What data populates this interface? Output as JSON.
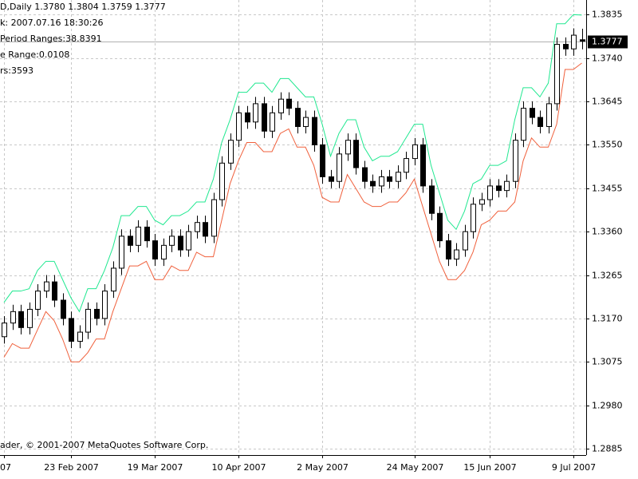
{
  "header": {
    "lines": [
      "D,Daily  1.3780 1.3804 1.3759 1.3777",
      "k: 2007.07.16 18:30:26",
      "Period Ranges:38.8391",
      "e Range:0.0108",
      "rs:3593"
    ]
  },
  "copyright": "ader, © 2001-2007 MetaQuotes Software Corp.",
  "chart_data": {
    "type": "candlestick",
    "categories": [
      "07",
      null,
      null,
      null,
      null,
      null,
      null,
      null,
      "23 Feb 2007",
      null,
      null,
      null,
      null,
      null,
      null,
      null,
      null,
      null,
      "19 Mar 2007",
      null,
      null,
      null,
      null,
      null,
      null,
      null,
      null,
      null,
      "10 Apr 2007",
      null,
      null,
      null,
      null,
      null,
      null,
      null,
      null,
      null,
      "2 May 2007",
      null,
      null,
      null,
      null,
      null,
      null,
      null,
      null,
      null,
      null,
      "24 May 2007",
      null,
      null,
      null,
      null,
      null,
      null,
      null,
      null,
      "15 Jun 2007",
      null,
      null,
      null,
      null,
      null,
      null,
      null,
      null,
      null,
      "9 Jul 2007",
      null
    ],
    "open": [
      1.313,
      1.316,
      1.3185,
      1.315,
      1.319,
      1.323,
      1.325,
      1.321,
      1.317,
      1.312,
      1.314,
      1.319,
      1.317,
      1.323,
      1.328,
      1.335,
      1.333,
      1.337,
      1.334,
      1.33,
      1.333,
      1.335,
      1.332,
      1.336,
      1.338,
      1.335,
      1.343,
      1.351,
      1.356,
      1.362,
      1.36,
      1.364,
      1.358,
      1.362,
      1.365,
      1.363,
      1.359,
      1.361,
      1.355,
      1.348,
      1.347,
      1.353,
      1.356,
      1.35,
      1.347,
      1.346,
      1.348,
      1.347,
      1.349,
      1.352,
      1.355,
      1.346,
      1.34,
      1.334,
      1.33,
      1.332,
      1.336,
      1.342,
      1.343,
      1.346,
      1.345,
      1.347,
      1.356,
      1.363,
      1.361,
      1.359,
      1.364,
      1.377,
      1.376,
      1.378
    ],
    "high": [
      1.3175,
      1.32,
      1.32,
      1.3205,
      1.3245,
      1.3265,
      1.3265,
      1.3225,
      1.3185,
      1.3155,
      1.3205,
      1.3205,
      1.3245,
      1.3295,
      1.3365,
      1.3365,
      1.3385,
      1.3385,
      1.3355,
      1.3345,
      1.3365,
      1.3365,
      1.3375,
      1.3395,
      1.3395,
      1.3445,
      1.3525,
      1.3575,
      1.3635,
      1.3635,
      1.3655,
      1.3655,
      1.3635,
      1.3665,
      1.3665,
      1.3645,
      1.3625,
      1.3625,
      1.3565,
      1.3495,
      1.3545,
      1.3575,
      1.3575,
      1.3515,
      1.3485,
      1.3495,
      1.3495,
      1.3505,
      1.3535,
      1.3565,
      1.3565,
      1.3475,
      1.3415,
      1.3355,
      1.3335,
      1.3375,
      1.3435,
      1.3445,
      1.3475,
      1.3475,
      1.3485,
      1.3575,
      1.3645,
      1.3645,
      1.3625,
      1.3655,
      1.3785,
      1.3785,
      1.3805,
      1.3804
    ],
    "low": [
      1.3115,
      1.3145,
      1.3135,
      1.3135,
      1.3175,
      1.3215,
      1.3195,
      1.3155,
      1.3105,
      1.3105,
      1.3125,
      1.3155,
      1.3155,
      1.3215,
      1.3265,
      1.3315,
      1.3315,
      1.3325,
      1.3285,
      1.3285,
      1.3315,
      1.3305,
      1.3305,
      1.3345,
      1.3335,
      1.3335,
      1.3415,
      1.3495,
      1.3545,
      1.3585,
      1.3585,
      1.3565,
      1.3565,
      1.3605,
      1.3615,
      1.3575,
      1.3575,
      1.3535,
      1.3465,
      1.3455,
      1.3455,
      1.3515,
      1.3485,
      1.3455,
      1.3445,
      1.3445,
      1.3455,
      1.3455,
      1.3475,
      1.3505,
      1.3445,
      1.3385,
      1.3325,
      1.3285,
      1.3285,
      1.3305,
      1.3345,
      1.3405,
      1.3415,
      1.3435,
      1.3435,
      1.3455,
      1.3545,
      1.3595,
      1.3575,
      1.3575,
      1.3625,
      1.3745,
      1.3745,
      1.3759
    ],
    "close": [
      1.316,
      1.3185,
      1.315,
      1.319,
      1.323,
      1.325,
      1.321,
      1.317,
      1.312,
      1.314,
      1.319,
      1.317,
      1.323,
      1.328,
      1.335,
      1.333,
      1.337,
      1.334,
      1.33,
      1.333,
      1.335,
      1.332,
      1.336,
      1.338,
      1.335,
      1.343,
      1.351,
      1.356,
      1.362,
      1.36,
      1.364,
      1.358,
      1.362,
      1.365,
      1.363,
      1.359,
      1.361,
      1.355,
      1.348,
      1.347,
      1.353,
      1.356,
      1.35,
      1.347,
      1.346,
      1.348,
      1.347,
      1.349,
      1.352,
      1.355,
      1.346,
      1.34,
      1.334,
      1.33,
      1.332,
      1.336,
      1.342,
      1.343,
      1.346,
      1.345,
      1.347,
      1.356,
      1.363,
      1.361,
      1.359,
      1.364,
      1.377,
      1.376,
      1.379,
      1.3777
    ],
    "envelopes": [
      {
        "color": "#20e890",
        "values": [
          1.3205,
          1.323,
          1.323,
          1.3235,
          1.3275,
          1.3295,
          1.3295,
          1.3255,
          1.3215,
          1.3185,
          1.3235,
          1.3235,
          1.3275,
          1.3325,
          1.3395,
          1.3395,
          1.3415,
          1.3415,
          1.3385,
          1.3375,
          1.3395,
          1.3395,
          1.3405,
          1.3425,
          1.3425,
          1.3475,
          1.3555,
          1.3605,
          1.3665,
          1.3665,
          1.3685,
          1.3685,
          1.3665,
          1.3695,
          1.3695,
          1.3675,
          1.3655,
          1.3655,
          1.3595,
          1.3525,
          1.3575,
          1.3605,
          1.3605,
          1.3545,
          1.3515,
          1.3525,
          1.3525,
          1.3535,
          1.3565,
          1.3595,
          1.3595,
          1.3505,
          1.3445,
          1.3385,
          1.3365,
          1.3405,
          1.3465,
          1.3475,
          1.3505,
          1.3505,
          1.3515,
          1.3605,
          1.3675,
          1.3675,
          1.3655,
          1.3685,
          1.3815,
          1.3815,
          1.3835,
          1.3834
        ]
      },
      {
        "color": "#f0603c",
        "values": [
          1.3085,
          1.3115,
          1.3105,
          1.3105,
          1.3145,
          1.3185,
          1.3165,
          1.3125,
          1.3075,
          1.3075,
          1.3095,
          1.3125,
          1.3125,
          1.3185,
          1.3235,
          1.3285,
          1.3285,
          1.3295,
          1.3255,
          1.3255,
          1.3285,
          1.3275,
          1.3275,
          1.3315,
          1.3305,
          1.3305,
          1.3385,
          1.3465,
          1.3515,
          1.3555,
          1.3555,
          1.3535,
          1.3535,
          1.3575,
          1.3585,
          1.3545,
          1.3545,
          1.3505,
          1.3435,
          1.3425,
          1.3425,
          1.3485,
          1.3455,
          1.3425,
          1.3415,
          1.3415,
          1.3425,
          1.3425,
          1.3445,
          1.3475,
          1.3415,
          1.3355,
          1.3295,
          1.3255,
          1.3255,
          1.3275,
          1.3315,
          1.3375,
          1.3385,
          1.3405,
          1.3405,
          1.3425,
          1.3515,
          1.3565,
          1.3545,
          1.3545,
          1.3595,
          1.3715,
          1.3715,
          1.3729
        ]
      }
    ],
    "ylim": [
      1.2871,
      1.3867
    ],
    "yticks": [
      1.3835,
      {
        "value": 1.374,
        "label": "1.3740"
      },
      1.3645,
      {
        "value": 1.355,
        "label": "1.3550"
      },
      1.3455,
      {
        "value": 1.336,
        "label": "1.3360"
      },
      1.3265,
      {
        "value": 1.317,
        "label": "1.3170"
      },
      1.3075,
      {
        "value": 1.298,
        "label": "1.2980"
      },
      1.2885
    ],
    "grid": true
  }
}
